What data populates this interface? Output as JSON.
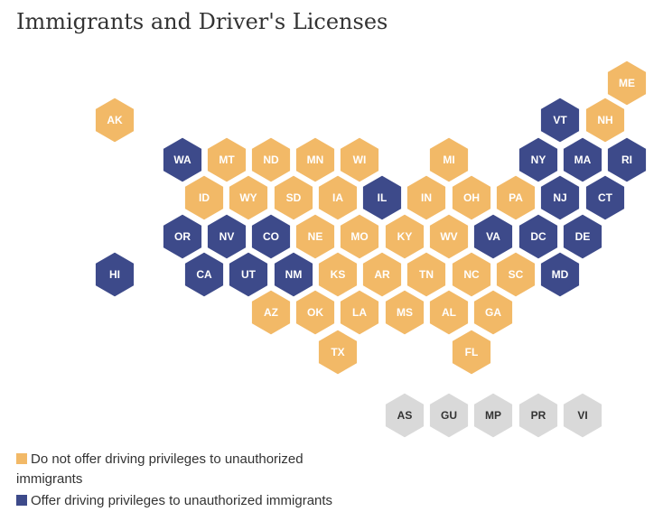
{
  "title": "Immigrants and Driver's Licenses",
  "legend": [
    {
      "label": "Do not offer driving privileges to unauthorized immigrants",
      "color": "#f2b967"
    },
    {
      "label": "Offer driving privileges to unauthorized immigrants",
      "color": "#3d4a8a"
    }
  ],
  "territory_color": "#d9d9d9",
  "hexes": [
    {
      "label": "ME",
      "group": 0
    },
    {
      "label": "AK",
      "group": 0
    },
    {
      "label": "VT",
      "group": 1
    },
    {
      "label": "NH",
      "group": 0
    },
    {
      "label": "WA",
      "group": 1
    },
    {
      "label": "MT",
      "group": 0
    },
    {
      "label": "ND",
      "group": 0
    },
    {
      "label": "MN",
      "group": 0
    },
    {
      "label": "WI",
      "group": 0
    },
    {
      "label": "MI",
      "group": 0
    },
    {
      "label": "NY",
      "group": 1
    },
    {
      "label": "MA",
      "group": 1
    },
    {
      "label": "RI",
      "group": 1
    },
    {
      "label": "ID",
      "group": 0
    },
    {
      "label": "WY",
      "group": 0
    },
    {
      "label": "SD",
      "group": 0
    },
    {
      "label": "IA",
      "group": 0
    },
    {
      "label": "IL",
      "group": 1
    },
    {
      "label": "IN",
      "group": 0
    },
    {
      "label": "OH",
      "group": 0
    },
    {
      "label": "PA",
      "group": 0
    },
    {
      "label": "NJ",
      "group": 1
    },
    {
      "label": "CT",
      "group": 1
    },
    {
      "label": "OR",
      "group": 1
    },
    {
      "label": "NV",
      "group": 1
    },
    {
      "label": "CO",
      "group": 1
    },
    {
      "label": "NE",
      "group": 0
    },
    {
      "label": "MO",
      "group": 0
    },
    {
      "label": "KY",
      "group": 0
    },
    {
      "label": "WV",
      "group": 0
    },
    {
      "label": "VA",
      "group": 1
    },
    {
      "label": "DC",
      "group": 1
    },
    {
      "label": "DE",
      "group": 1
    },
    {
      "label": "HI",
      "group": 1
    },
    {
      "label": "CA",
      "group": 1
    },
    {
      "label": "UT",
      "group": 1
    },
    {
      "label": "NM",
      "group": 1
    },
    {
      "label": "KS",
      "group": 0
    },
    {
      "label": "AR",
      "group": 0
    },
    {
      "label": "TN",
      "group": 0
    },
    {
      "label": "NC",
      "group": 0
    },
    {
      "label": "SC",
      "group": 0
    },
    {
      "label": "MD",
      "group": 1
    },
    {
      "label": "AZ",
      "group": 0
    },
    {
      "label": "OK",
      "group": 0
    },
    {
      "label": "LA",
      "group": 0
    },
    {
      "label": "MS",
      "group": 0
    },
    {
      "label": "AL",
      "group": 0
    },
    {
      "label": "GA",
      "group": 0
    },
    {
      "label": "TX",
      "group": 0
    },
    {
      "label": "FL",
      "group": 0
    },
    {
      "label": "AS",
      "group": null
    },
    {
      "label": "GU",
      "group": null
    },
    {
      "label": "MP",
      "group": null
    },
    {
      "label": "PR",
      "group": null
    },
    {
      "label": "VI",
      "group": null
    }
  ]
}
